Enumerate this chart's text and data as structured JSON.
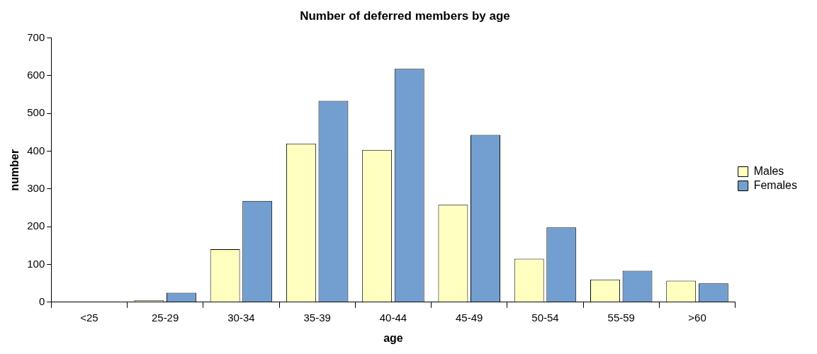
{
  "chart_data": {
    "type": "bar",
    "title": "Number of deferred members by age",
    "xlabel": "age",
    "ylabel": "number",
    "categories": [
      "<25",
      "25-29",
      "30-34",
      "35-39",
      "40-44",
      "45-49",
      "50-54",
      "55-59",
      ">60"
    ],
    "series": [
      {
        "name": "Males",
        "color": "#ffffc0",
        "values": [
          0,
          5,
          140,
          420,
          403,
          258,
          115,
          60,
          57
        ]
      },
      {
        "name": "Females",
        "color": "#729fcf",
        "values": [
          0,
          25,
          268,
          533,
          618,
          443,
          198,
          83,
          50
        ]
      }
    ],
    "ylim": [
      0,
      700
    ],
    "yticks": [
      0,
      100,
      200,
      300,
      400,
      500,
      600,
      700
    ],
    "grid": false,
    "legend": "right"
  }
}
